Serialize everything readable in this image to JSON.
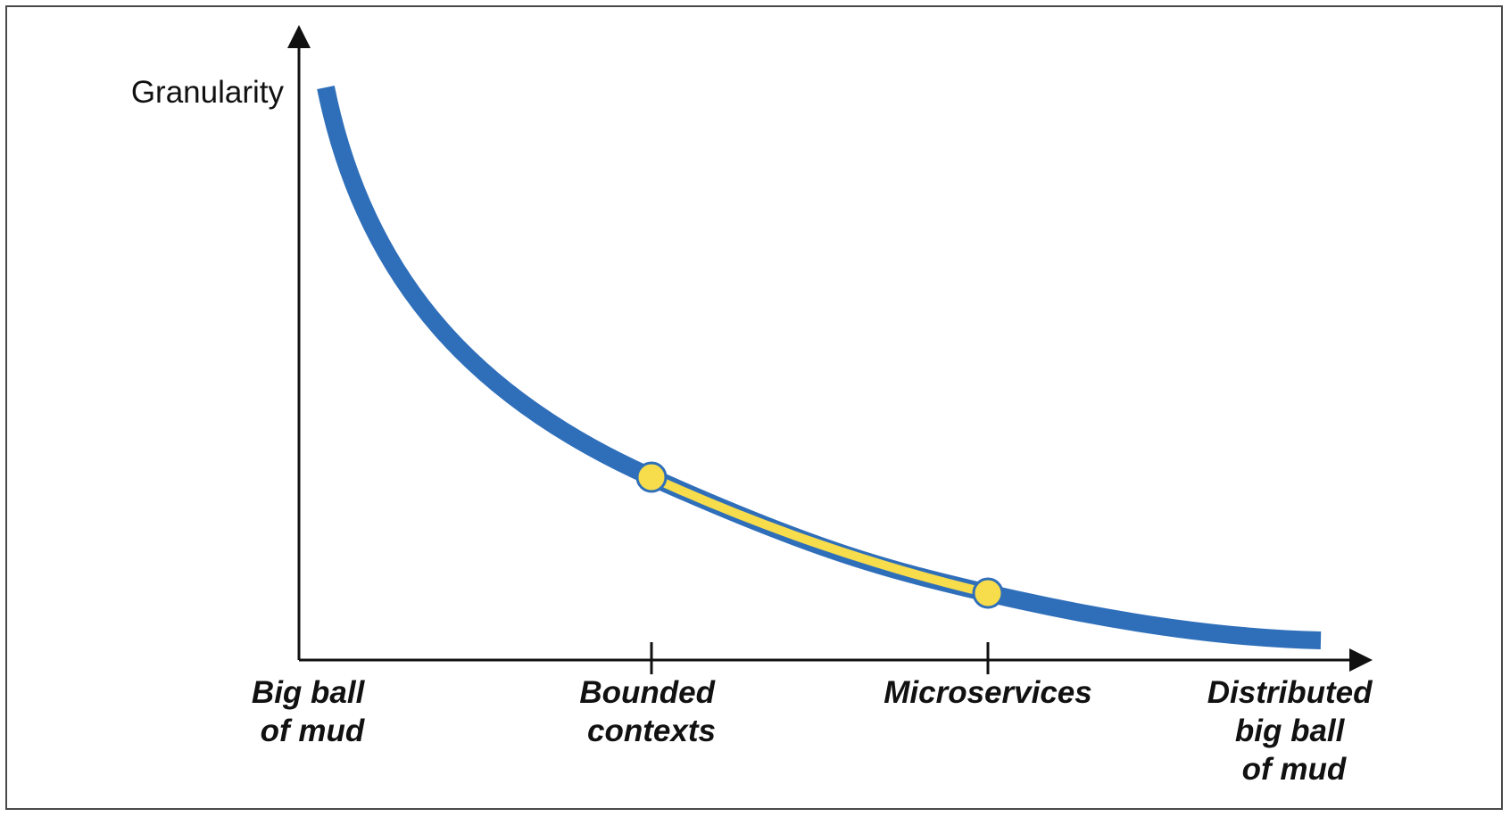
{
  "y_axis_label": "Granularity",
  "x_axis_stops": [
    {
      "lines": [
        "Big ball",
        "of mud"
      ]
    },
    {
      "lines": [
        "Bounded",
        "contexts"
      ]
    },
    {
      "lines": [
        "Microservices"
      ]
    },
    {
      "lines": [
        "Distributed",
        "big ball",
        "of mud"
      ]
    }
  ],
  "colors": {
    "curve": "#2f6fba",
    "highlight": "#f7dc4b",
    "axis": "#111111",
    "frame_border": "#4a4a4a"
  }
}
